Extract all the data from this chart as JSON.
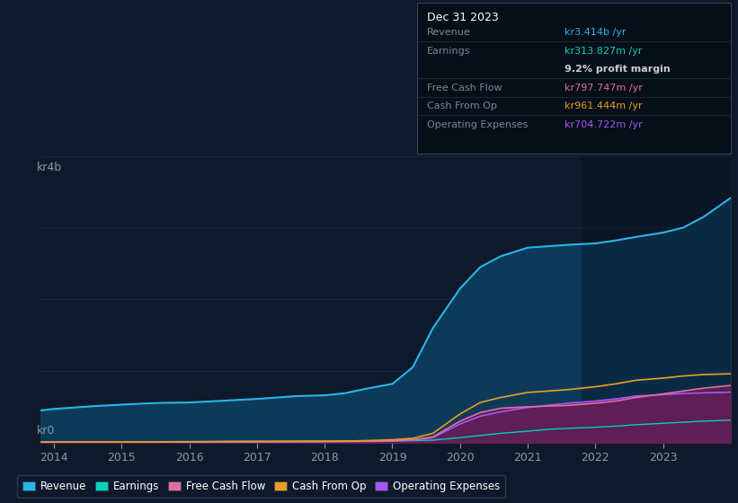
{
  "bg_color": "#0e1a2b",
  "chart_bg": "#0e1a2b",
  "grid_color": "#1a2d44",
  "years": [
    2013.8,
    2014,
    2014.3,
    2014.6,
    2015,
    2015.3,
    2015.6,
    2016,
    2016.3,
    2016.6,
    2017,
    2017.3,
    2017.6,
    2018,
    2018.3,
    2018.6,
    2019,
    2019.3,
    2019.6,
    2020,
    2020.3,
    2020.6,
    2021,
    2021.3,
    2021.6,
    2022,
    2022.3,
    2022.6,
    2023,
    2023.3,
    2023.6,
    2024.0
  ],
  "revenue": [
    450,
    470,
    490,
    510,
    530,
    545,
    555,
    560,
    575,
    590,
    610,
    630,
    650,
    660,
    690,
    750,
    820,
    1050,
    1600,
    2150,
    2450,
    2600,
    2720,
    2740,
    2760,
    2780,
    2820,
    2870,
    2930,
    3000,
    3150,
    3414
  ],
  "earnings": [
    8,
    9,
    10,
    11,
    12,
    13,
    14,
    15,
    16,
    17,
    18,
    19,
    20,
    20,
    22,
    24,
    25,
    28,
    35,
    70,
    100,
    130,
    160,
    185,
    200,
    215,
    230,
    250,
    270,
    285,
    300,
    314
  ],
  "free_cash_flow": [
    5,
    6,
    7,
    8,
    9,
    10,
    11,
    12,
    13,
    14,
    15,
    16,
    17,
    18,
    20,
    22,
    28,
    40,
    80,
    300,
    420,
    480,
    500,
    510,
    520,
    550,
    580,
    630,
    680,
    720,
    760,
    798
  ],
  "cash_from_op": [
    6,
    7,
    8,
    9,
    10,
    11,
    12,
    13,
    14,
    15,
    16,
    17,
    18,
    19,
    22,
    28,
    40,
    60,
    130,
    400,
    560,
    630,
    700,
    720,
    740,
    780,
    820,
    870,
    900,
    930,
    950,
    961
  ],
  "operating_expenses": [
    4,
    5,
    5,
    6,
    6,
    7,
    8,
    8,
    9,
    10,
    10,
    11,
    12,
    12,
    14,
    16,
    20,
    35,
    70,
    260,
    370,
    430,
    490,
    520,
    550,
    580,
    610,
    650,
    670,
    685,
    695,
    705
  ],
  "revenue_color": "#29b5e8",
  "revenue_fill": "#0e3a5a",
  "earnings_color": "#00d4b8",
  "earnings_fill": "#0a3a38",
  "free_cash_flow_color": "#e06ea0",
  "free_cash_flow_fill": "#7a2a50",
  "cash_from_op_color": "#e8a020",
  "cash_from_op_fill": "#6a3a00",
  "operating_expenses_color": "#a855f7",
  "operating_expenses_fill": "#4a1a7a",
  "ylim_max": 4000,
  "ylabel_top": "kr4b",
  "ylabel_bottom": "kr0",
  "legend_items": [
    "Revenue",
    "Earnings",
    "Free Cash Flow",
    "Cash From Op",
    "Operating Expenses"
  ],
  "xtick_years": [
    2014,
    2015,
    2016,
    2017,
    2018,
    2019,
    2020,
    2021,
    2022,
    2023
  ],
  "info_box": {
    "title": "Dec 31 2023",
    "rows": [
      {
        "label": "Revenue",
        "value": "kr3.414b /yr",
        "value_color": "#29b5e8",
        "dimmed": true
      },
      {
        "label": "Earnings",
        "value": "kr313.827m /yr",
        "value_color": "#00d4b8",
        "dimmed": true
      },
      {
        "label": "",
        "value": "9.2% profit margin",
        "value_color": "#cccccc",
        "dimmed": false
      },
      {
        "label": "Free Cash Flow",
        "value": "kr797.747m /yr",
        "value_color": "#e06ea0",
        "dimmed": true
      },
      {
        "label": "Cash From Op",
        "value": "kr961.444m /yr",
        "value_color": "#e8a020",
        "dimmed": true
      },
      {
        "label": "Operating Expenses",
        "value": "kr704.722m /yr",
        "value_color": "#a855f7",
        "dimmed": true
      }
    ]
  }
}
